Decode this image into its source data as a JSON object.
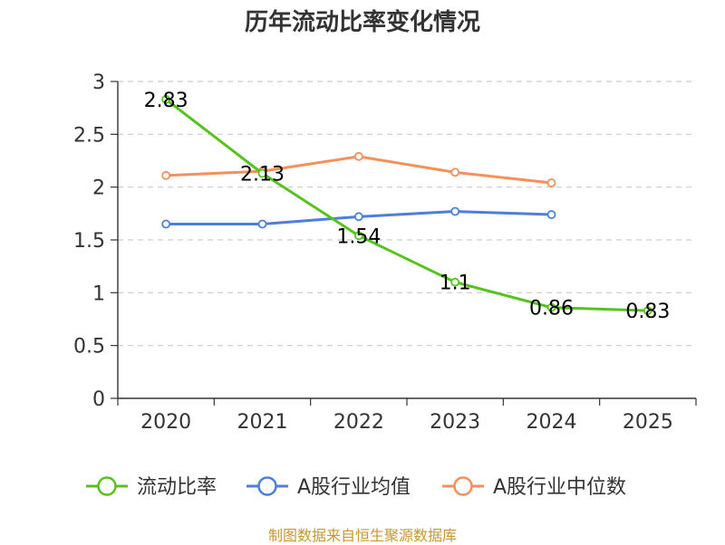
{
  "chart_data": {
    "type": "line",
    "title": "历年流动比率变化情况",
    "categories": [
      "2020",
      "2021",
      "2022",
      "2023",
      "2024",
      "2025"
    ],
    "ylim": [
      0,
      3
    ],
    "yticks": [
      "0",
      "0.5",
      "1",
      "1.5",
      "2",
      "2.5",
      "3"
    ],
    "ytick_values": [
      0,
      0.5,
      1,
      1.5,
      2,
      2.5,
      3
    ],
    "grid": true,
    "legend_position": "bottom",
    "series": [
      {
        "name": "流动比率",
        "color": "#52c41a",
        "values": [
          2.83,
          2.13,
          1.54,
          1.1,
          0.86,
          0.83
        ],
        "labels": [
          "2.83",
          "2.13",
          "1.54",
          "1.1",
          "0.86",
          "0.83"
        ]
      },
      {
        "name": "A股行业均值",
        "color": "#4a7fdc",
        "values": [
          1.65,
          1.65,
          1.72,
          1.77,
          1.74,
          null
        ]
      },
      {
        "name": "A股行业中位数",
        "color": "#f5905a",
        "values": [
          2.11,
          2.15,
          2.29,
          2.14,
          2.04,
          null
        ]
      }
    ]
  },
  "footer": {
    "source": "制图数据来自恒生聚源数据库"
  }
}
